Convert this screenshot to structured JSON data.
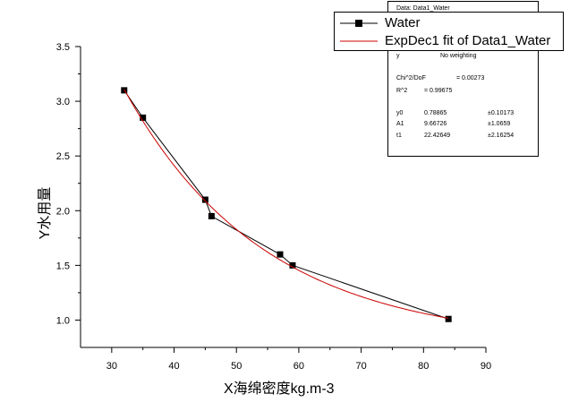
{
  "chart_data": {
    "type": "scatter",
    "title": "",
    "xlabel": "X海绵密度kg.m-3",
    "ylabel": "Y水用量",
    "xlim": [
      25,
      90
    ],
    "ylim": [
      0.75,
      3.5
    ],
    "xticks": [
      30,
      40,
      50,
      60,
      70,
      80,
      90
    ],
    "yticks": [
      1.0,
      1.5,
      2.0,
      2.5,
      3.0,
      3.5
    ],
    "xtick_labels": [
      "30",
      "40",
      "50",
      "60",
      "70",
      "80",
      "90"
    ],
    "ytick_labels": [
      "1.0",
      "1.5",
      "2.0",
      "2.5",
      "3.0",
      "3.5"
    ],
    "grid": false,
    "legend_position": "top-right",
    "series": [
      {
        "name": "Water",
        "style": "line+square-markers",
        "color": "#000000",
        "x": [
          32,
          35,
          45,
          46,
          57,
          59,
          84
        ],
        "y": [
          3.1,
          2.85,
          2.1,
          1.95,
          1.6,
          1.5,
          1.01
        ]
      },
      {
        "name": "ExpDec1 fit of Data1_Water",
        "style": "line",
        "color": "#cc0000",
        "model": {
          "y0": 0.78865,
          "A1": 9.66726,
          "t1": 22.42649
        },
        "x_range": [
          32,
          84
        ]
      }
    ],
    "fit_report": {
      "header": "Data: Data1_Water",
      "weighting_label": "y",
      "weighting_value": "No weighting",
      "chi2_label": "Chi^2/DoF",
      "chi2_value": "= 0.00273",
      "r2_label": "R^2",
      "r2_value": "= 0.99675",
      "params": [
        {
          "name": "y0",
          "value": "0.78865",
          "error": "±0.10173"
        },
        {
          "name": "A1",
          "value": "9.66726",
          "error": "±1.0659"
        },
        {
          "name": "t1",
          "value": "22.42649",
          "error": "±2.16254"
        }
      ]
    }
  }
}
